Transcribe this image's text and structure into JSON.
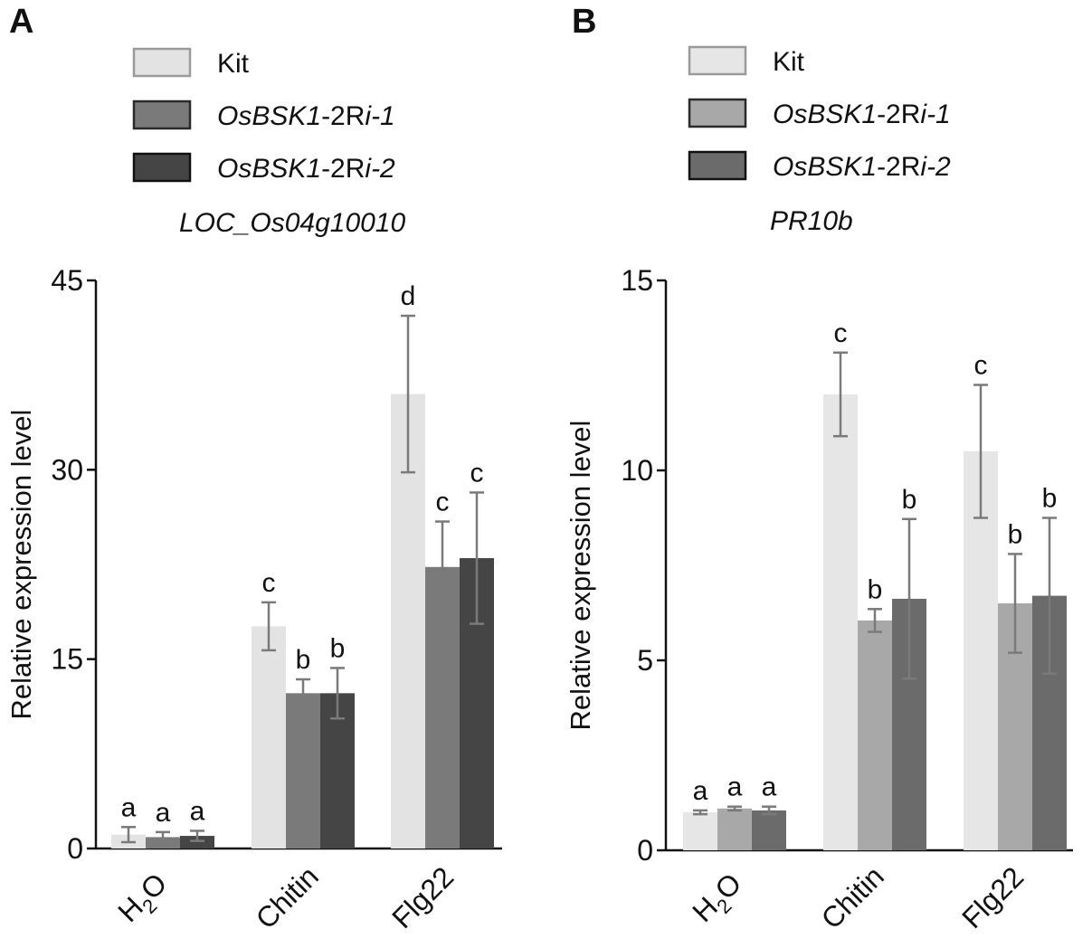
{
  "chart_data": [
    {
      "type": "bar",
      "panel": "A",
      "title": "LOC_Os04g10010",
      "ylabel": "Relative expression level",
      "ylim": [
        0,
        45
      ],
      "yticks": [
        0,
        15,
        30,
        45
      ],
      "categories": [
        "H2O",
        "Chitin",
        "Flg22"
      ],
      "series": [
        {
          "name": "Kit",
          "color": "#e3e3e3",
          "values": [
            1.1,
            17.6,
            36.0
          ],
          "errors": [
            0.6,
            1.9,
            6.2
          ],
          "letters": [
            "a",
            "c",
            "d"
          ]
        },
        {
          "name": "OsBSK1-2Ri-1",
          "color": "#7a7a7a",
          "values": [
            0.9,
            12.3,
            22.3
          ],
          "errors": [
            0.4,
            1.1,
            3.6
          ],
          "letters": [
            "a",
            "b",
            "c"
          ]
        },
        {
          "name": "OsBSK1-2Ri-2",
          "color": "#454545",
          "values": [
            1.0,
            12.3,
            23.0
          ],
          "errors": [
            0.4,
            2.0,
            5.2
          ],
          "letters": [
            "a",
            "b",
            "c"
          ]
        }
      ]
    },
    {
      "type": "bar",
      "panel": "B",
      "title": "PR10b",
      "ylabel": "Relative expression level",
      "ylim": [
        0,
        15
      ],
      "yticks": [
        0,
        5,
        10,
        15
      ],
      "categories": [
        "H2O",
        "Chitin",
        "Flg22"
      ],
      "series": [
        {
          "name": "Kit",
          "color": "#e6e6e6",
          "values": [
            1.0,
            12.0,
            10.5
          ],
          "errors": [
            0.05,
            1.1,
            1.75
          ],
          "letters": [
            "a",
            "c",
            "c"
          ]
        },
        {
          "name": "OsBSK1-2Ri-1",
          "color": "#a8a8a8",
          "values": [
            1.1,
            6.05,
            6.5
          ],
          "errors": [
            0.05,
            0.3,
            1.3
          ],
          "letters": [
            "a",
            "b",
            "b"
          ]
        },
        {
          "name": "OsBSK1-2Ri-2",
          "color": "#6b6b6b",
          "values": [
            1.05,
            6.62,
            6.7
          ],
          "errors": [
            0.1,
            2.1,
            2.05
          ],
          "letters": [
            "a",
            "b",
            "b"
          ]
        }
      ]
    }
  ],
  "legend_labels": {
    "A": [
      {
        "name": "Kit",
        "italic_prefix": "",
        "prefix": "Kit",
        "mid": "",
        "suffix": ""
      },
      {
        "name": "OsBSK1-2Ri-1",
        "prefix": "OsBSK1",
        "mid": "-2R",
        "suffix": "i-1"
      },
      {
        "name": "OsBSK1-2Ri-2",
        "prefix": "OsBSK1",
        "mid": "-2R",
        "suffix": "i-2"
      }
    ]
  },
  "category_display": {
    "H2O": {
      "main": "H",
      "sub": "2",
      "tail": "O"
    }
  }
}
